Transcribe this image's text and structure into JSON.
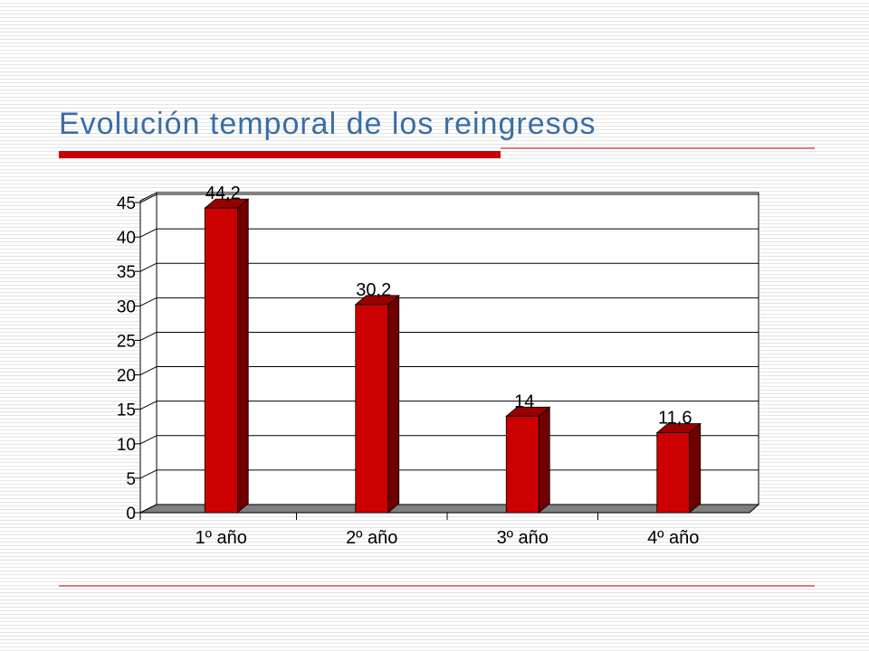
{
  "chart_data": {
    "type": "bar3d",
    "title": "Evolución temporal de los reingresos",
    "categories": [
      "1º año",
      "2º año",
      "3º año",
      "4º año"
    ],
    "values": [
      44.2,
      30.2,
      14,
      11.6
    ],
    "value_labels": [
      "44,2",
      "30,2",
      "14",
      "11,6"
    ],
    "color": "#cc0000",
    "ylim": [
      0,
      45
    ],
    "yticks": [
      0,
      5,
      10,
      15,
      20,
      25,
      30,
      35,
      40,
      45
    ],
    "grid": true
  }
}
